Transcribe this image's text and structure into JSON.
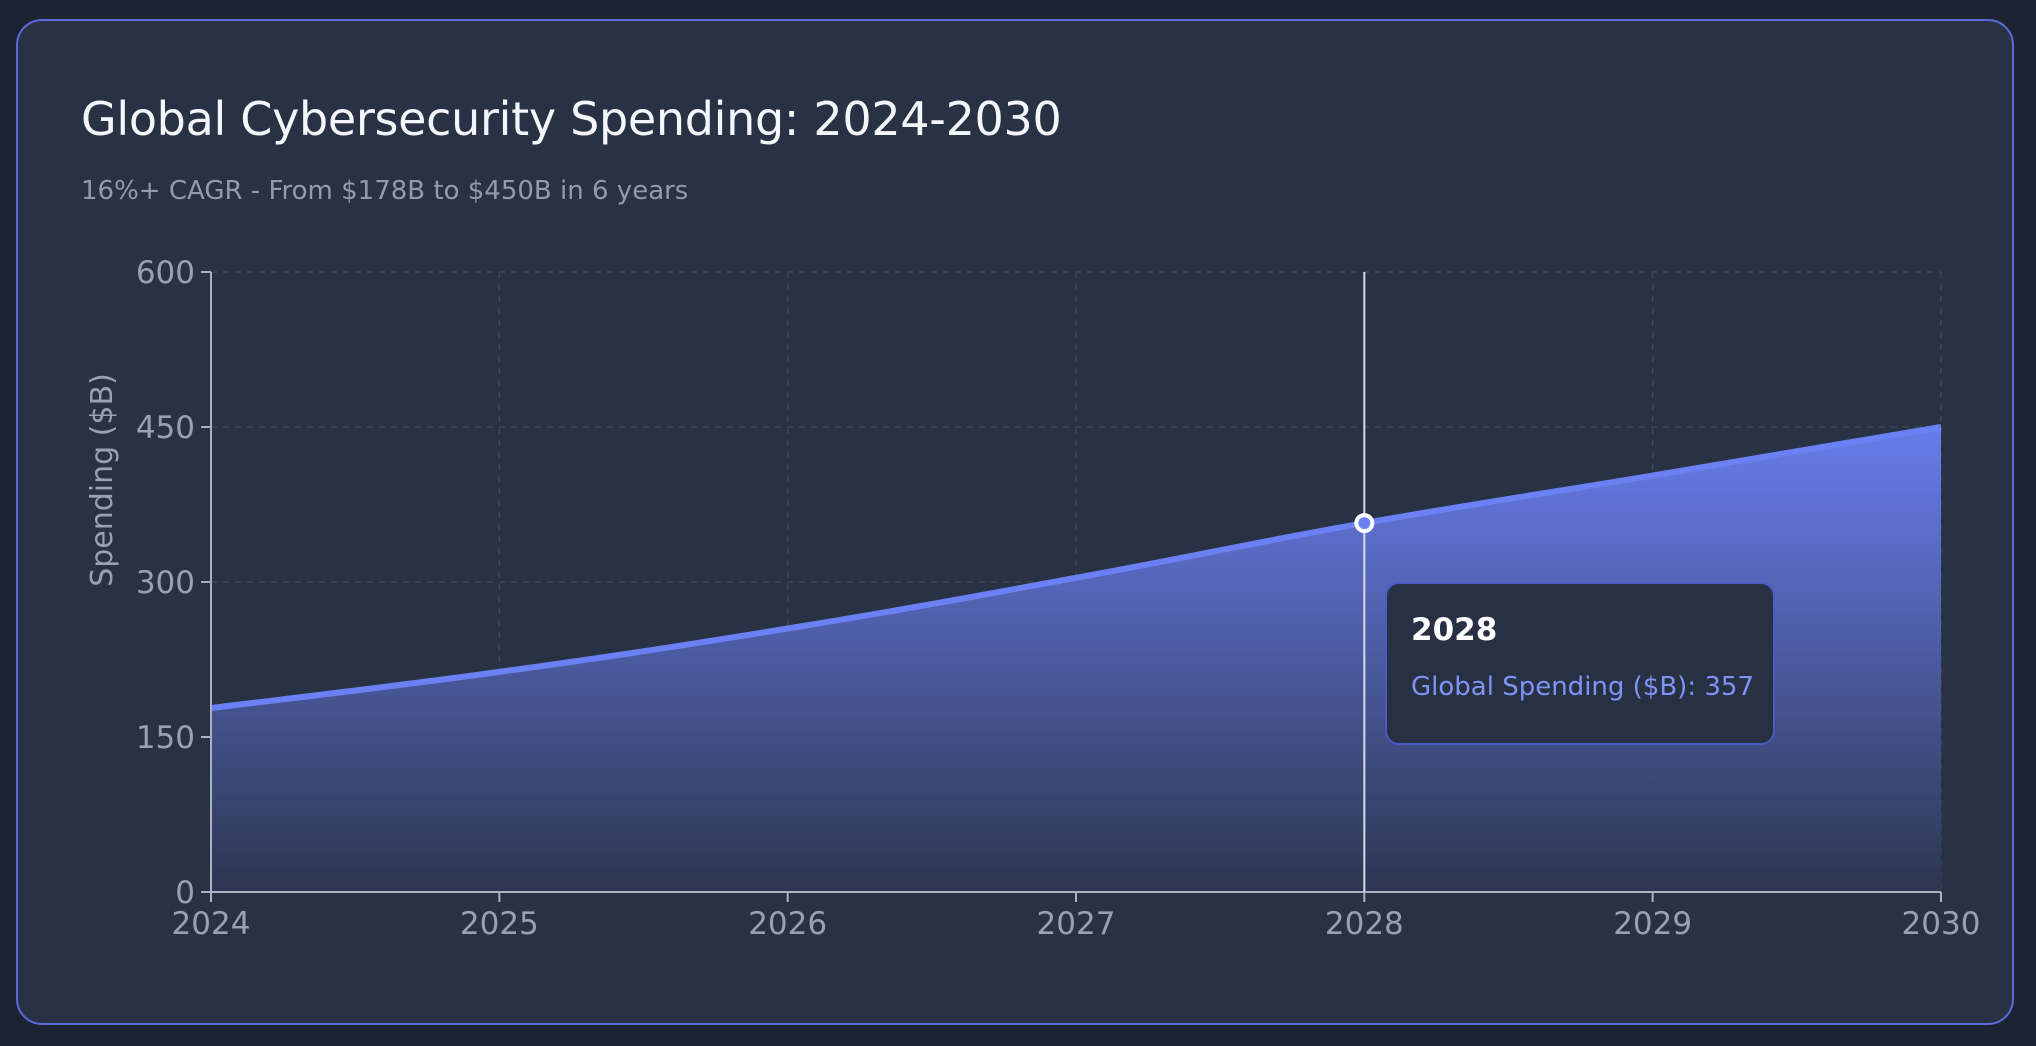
{
  "chart_data": {
    "type": "area",
    "title": "Global Cybersecurity Spending: 2024-2030",
    "subtitle": "16%+ CAGR - From $178B to $450B in 6 years",
    "xlabel": "",
    "ylabel": "Spending ($B)",
    "x": [
      "2024",
      "2025",
      "2026",
      "2027",
      "2028",
      "2029",
      "2030"
    ],
    "series": [
      {
        "name": "Global Spending ($B)",
        "values": [
          178,
          213,
          255,
          304,
          357,
          403,
          450
        ]
      }
    ],
    "ylim": [
      0,
      600
    ],
    "yticks": [
      "0",
      "150",
      "300",
      "450",
      "600"
    ],
    "grid": true,
    "colors": {
      "line": "#6b80f3",
      "area_top": "#6b80f3",
      "area_bottom": "#2c3650",
      "grid": "#3b4558",
      "axis": "#a9b1c0",
      "tick_label": "#97a1b4"
    },
    "tooltip": {
      "x_index": 4,
      "title": "2028",
      "label": "Global Spending ($B)",
      "value": "357"
    }
  }
}
